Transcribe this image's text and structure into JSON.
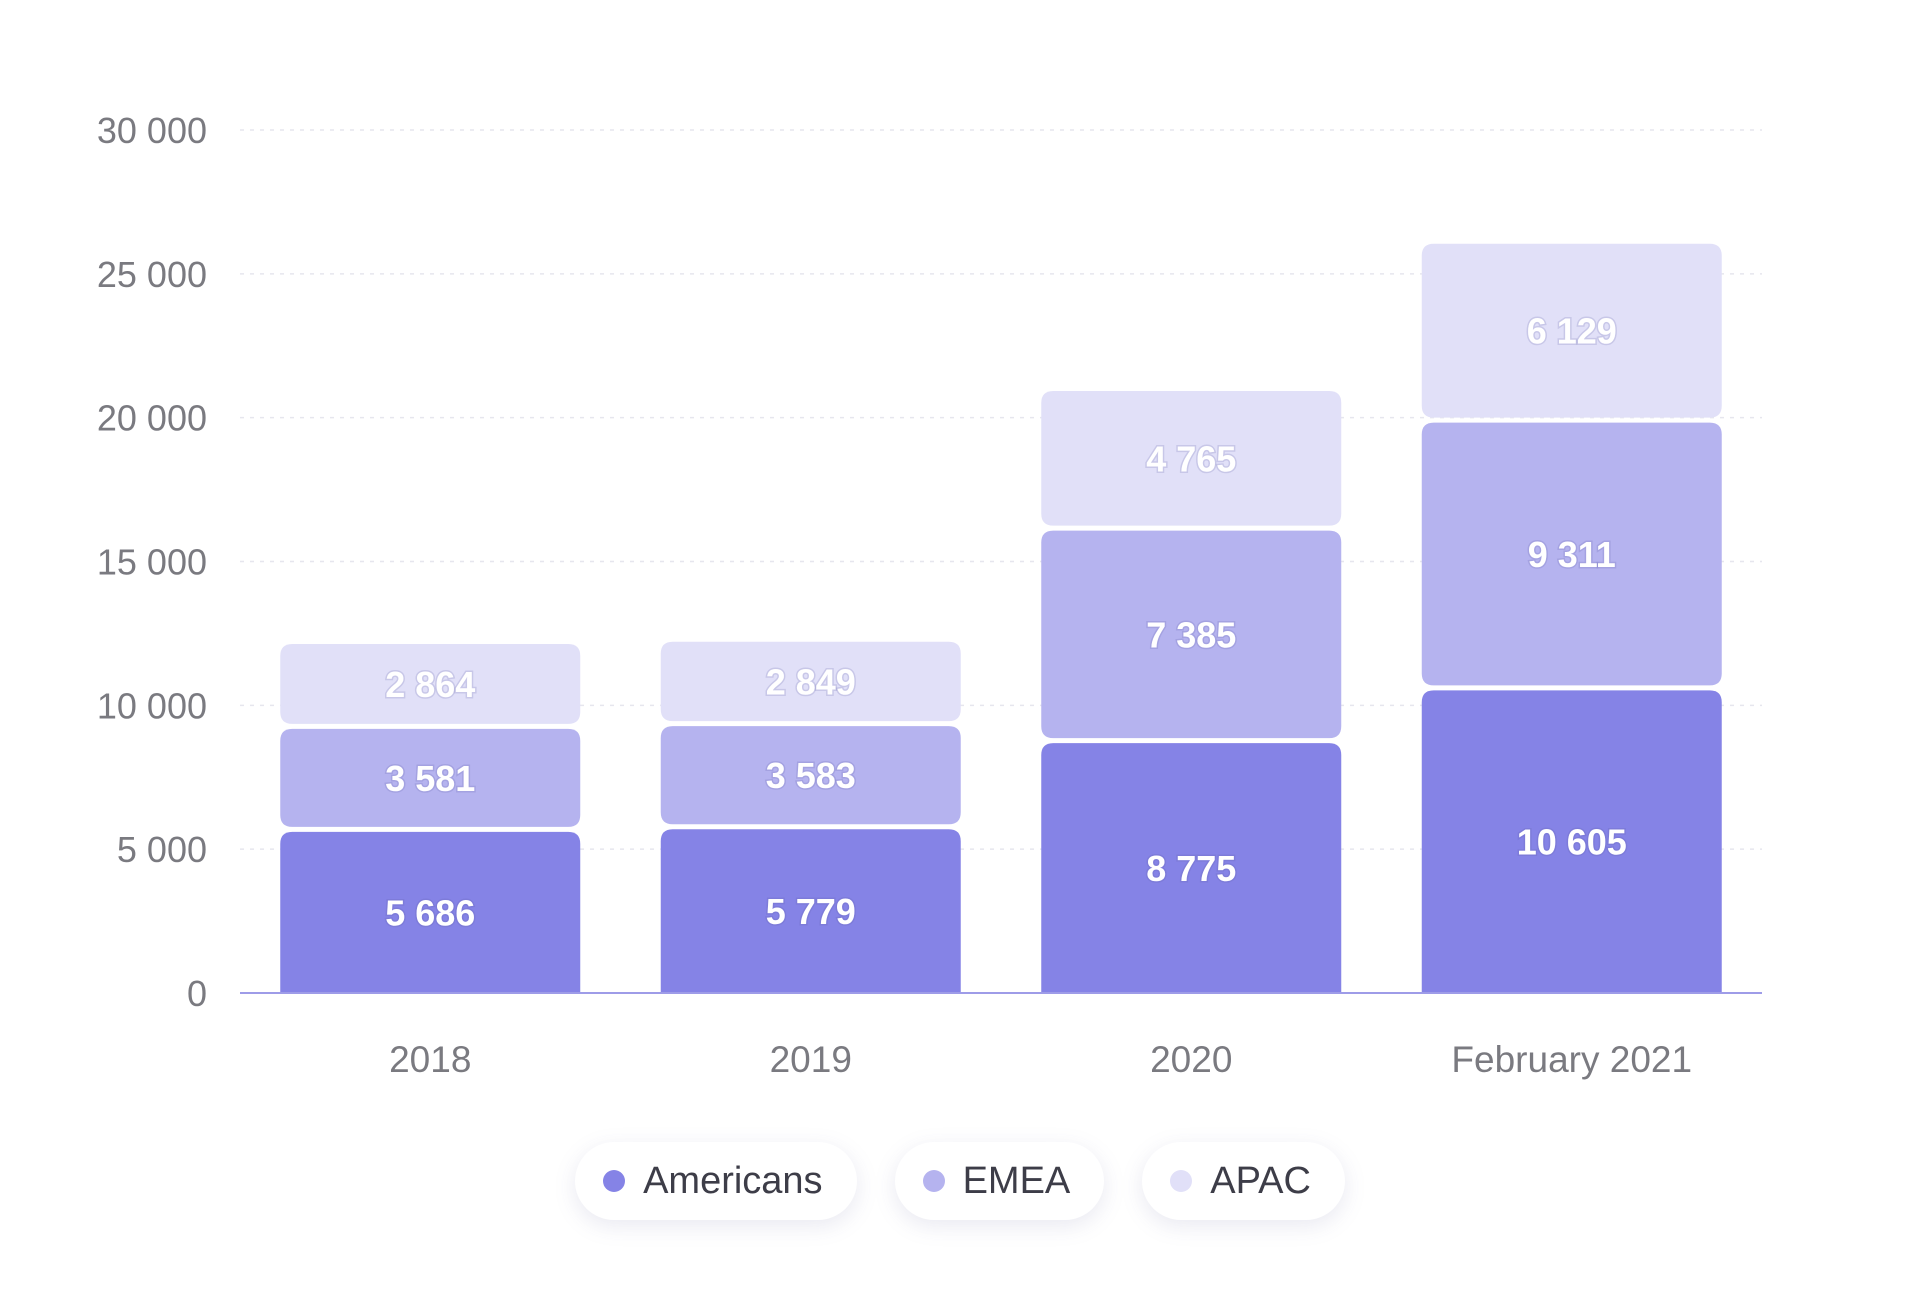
{
  "chart_data": {
    "type": "bar",
    "stacked": true,
    "categories": [
      "2018",
      "2019",
      "2020",
      "February 2021"
    ],
    "series": [
      {
        "name": "Americans",
        "color": "#8583e6",
        "values": [
          5686,
          5779,
          8775,
          10605
        ]
      },
      {
        "name": "EMEA",
        "color": "#b5b3ef",
        "values": [
          3581,
          3583,
          7385,
          9311
        ]
      },
      {
        "name": "APAC",
        "color": "#e1e0f8",
        "values": [
          2864,
          2849,
          4765,
          6129
        ]
      }
    ],
    "data_labels": [
      [
        "5 686",
        "5 779",
        "8 775",
        "10 605"
      ],
      [
        "3 581",
        "3 583",
        "7 385",
        "9 311"
      ],
      [
        "2 864",
        "2 849",
        "4 765",
        "6 129"
      ]
    ],
    "yticks": [
      0,
      5000,
      10000,
      15000,
      20000,
      25000,
      30000
    ],
    "ytick_labels": [
      "0",
      "5 000",
      "10 000",
      "15 000",
      "20 000",
      "25 000",
      "30 000"
    ],
    "ylim": [
      0,
      30000
    ],
    "grid": true,
    "legend_position": "bottom-center",
    "title": "",
    "xlabel": "",
    "ylabel": ""
  }
}
